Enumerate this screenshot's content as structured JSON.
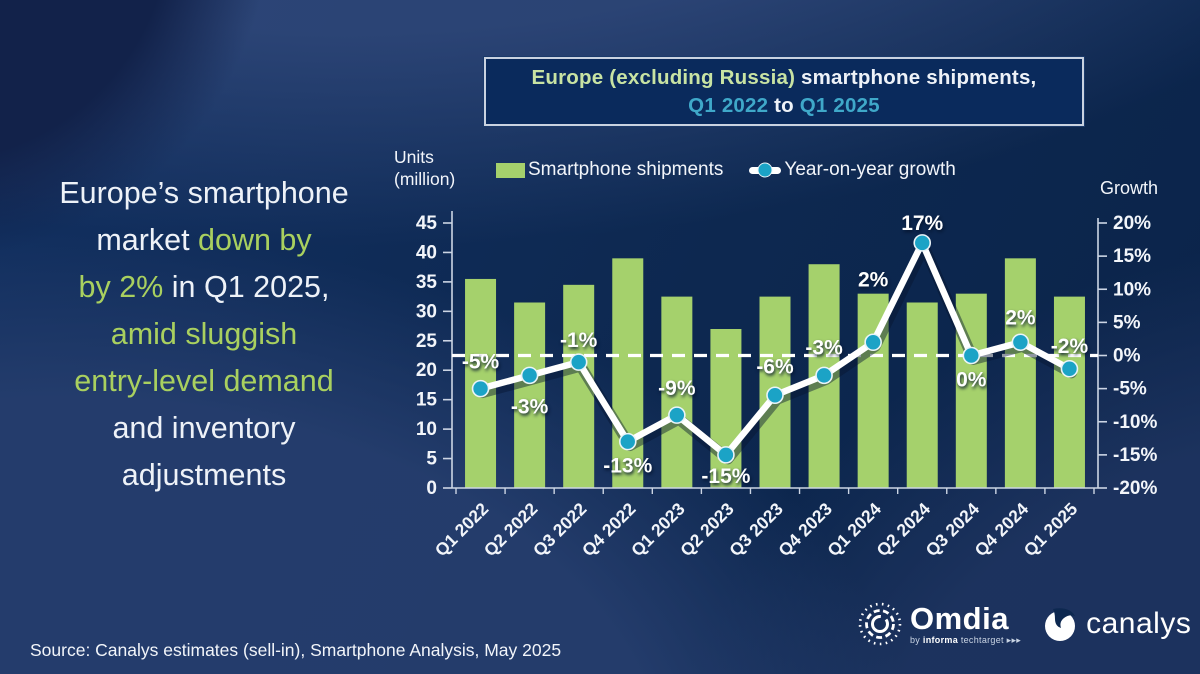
{
  "colors": {
    "background": "#0d2850",
    "bar_green": "#a5d16c",
    "line_white": "#ffffff",
    "dot_teal": "#1ba3c6",
    "accent_green": "#a9d05f",
    "accent_teal": "#3fa8c9",
    "title_pale_green": "#c8e3a3",
    "axis_text": "#f2f5fa"
  },
  "title_box": {
    "lines": [
      [
        {
          "t": "Europe (excluding Russia)",
          "c": "pgreen"
        },
        {
          "t": " smartphone shipments,",
          "c": "white"
        }
      ],
      [
        {
          "t": "Q1 2022",
          "c": "teal"
        },
        {
          "t": " to ",
          "c": "white"
        },
        {
          "t": "Q1 2025",
          "c": "teal"
        }
      ]
    ]
  },
  "headline": {
    "lines": [
      [
        {
          "t": "Europe’s smartphone",
          "c": "white"
        }
      ],
      [
        {
          "t": "market ",
          "c": "white"
        },
        {
          "t": "down by",
          "c": "green"
        }
      ],
      [
        {
          "t": "by 2% ",
          "c": "green"
        },
        {
          "t": "in Q1 2025,",
          "c": "white"
        }
      ],
      [
        {
          "t": "amid sluggish",
          "c": "green"
        }
      ],
      [
        {
          "t": "entry-level demand",
          "c": "green"
        }
      ],
      [
        {
          "t": "and inventory",
          "c": "white"
        }
      ],
      [
        {
          "t": "adjustments",
          "c": "white"
        }
      ]
    ]
  },
  "legend": {
    "bars_label": "Smartphone shipments",
    "line_label": "Year-on-year growth"
  },
  "axis_left": {
    "title_line1": "Units",
    "title_line2": "(million)",
    "ticks": [
      "45",
      "40",
      "35",
      "30",
      "25",
      "20",
      "15",
      "10",
      "5",
      "0"
    ]
  },
  "axis_right": {
    "title": "Growth",
    "ticks": [
      "20%",
      "15%",
      "10%",
      "5%",
      "0%",
      "-5%",
      "-10%",
      "-15%",
      "-20%"
    ]
  },
  "chart_data": {
    "type": "bar",
    "title": "Europe (excluding Russia) smartphone shipments, Q1 2022 to Q1 2025",
    "categories": [
      "Q1 2022",
      "Q2 2022",
      "Q3 2022",
      "Q4 2022",
      "Q1 2023",
      "Q2 2023",
      "Q3 2023",
      "Q4 2023",
      "Q1 2024",
      "Q2 2024",
      "Q3 2024",
      "Q4 2024",
      "Q1 2025"
    ],
    "left_axis": {
      "label": "Units (million)",
      "range": [
        0,
        45
      ],
      "step": 5
    },
    "right_axis": {
      "label": "Growth",
      "range": [
        -20,
        20
      ],
      "step": 5,
      "suffix": "%"
    },
    "zero_growth_dashed_line": true,
    "legend_position": "top",
    "series": [
      {
        "name": "Smartphone shipments",
        "type": "bar",
        "unit": "million units",
        "values": [
          35.5,
          31.5,
          34.5,
          39,
          32.5,
          27,
          32.5,
          38,
          33,
          31.5,
          33,
          39,
          32.5
        ]
      },
      {
        "name": "Year-on-year growth",
        "type": "line",
        "unit": "percent",
        "values": [
          -5,
          -3,
          -1,
          -13,
          -9,
          -15,
          -6,
          -3,
          2,
          17,
          0,
          2,
          -2
        ],
        "point_labels": [
          "-5%",
          "-3%",
          "-1%",
          "-13%",
          "-9%",
          "-15%",
          "-6%",
          "-3%",
          "2%",
          "17%",
          "0%",
          "2%",
          "-2%"
        ],
        "label_dy": [
          -20,
          38,
          -15,
          31,
          -20,
          28,
          -22,
          -21,
          -56,
          -13,
          31,
          -18,
          -16
        ]
      }
    ]
  },
  "source": "Source: Canalys estimates (sell-in), Smartphone Analysis, May 2025",
  "logos": {
    "omdia": "Omdia",
    "omdia_sub_by": "by ",
    "omdia_sub_informa": "informa",
    "omdia_sub_rest": " techtarget ▸▸▸",
    "canalys": "canalys"
  }
}
